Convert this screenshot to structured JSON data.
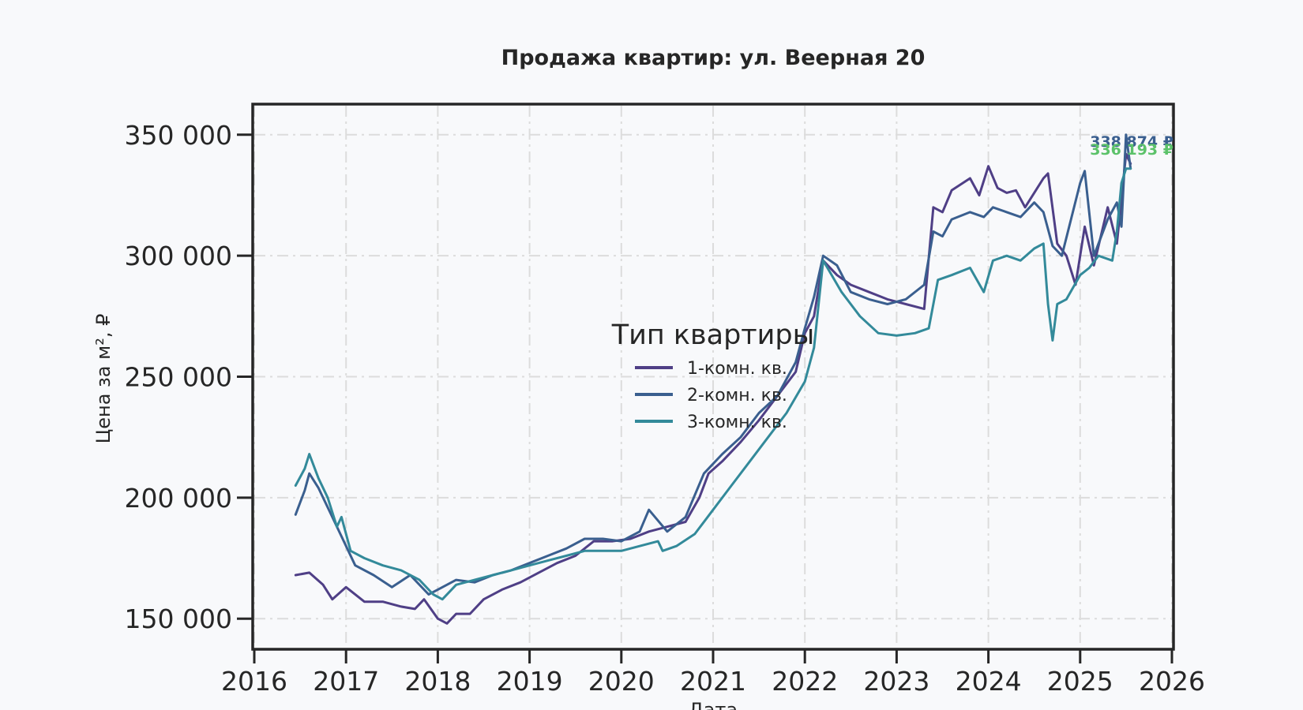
{
  "chart_data": {
    "type": "line",
    "title": "Продажа квартир: ул. Веерная 20",
    "xlabel": "Дата",
    "ylabel": "Цена за м², ₽",
    "xlim": [
      2016,
      2026
    ],
    "ylim": [
      138000,
      362000
    ],
    "x_ticks": [
      "2016",
      "2017",
      "2018",
      "2019",
      "2020",
      "2021",
      "2022",
      "2023",
      "2024",
      "2025",
      "2026"
    ],
    "y_ticks": [
      {
        "value": 150000,
        "label": "150 000"
      },
      {
        "value": 200000,
        "label": "200 000"
      },
      {
        "value": 250000,
        "label": "250 000"
      },
      {
        "value": 300000,
        "label": "300 000"
      },
      {
        "value": 350000,
        "label": "350 000"
      }
    ],
    "grid": true,
    "legend": {
      "title": "Тип квартиры",
      "placement": "center"
    },
    "series": [
      {
        "name": "1-комн. кв.",
        "color": "#4f3f86",
        "x": [
          2016.45,
          2016.6,
          2016.75,
          2016.85,
          2017.0,
          2017.2,
          2017.4,
          2017.6,
          2017.75,
          2017.85,
          2018.0,
          2018.1,
          2018.2,
          2018.35,
          2018.5,
          2018.7,
          2018.9,
          2019.1,
          2019.3,
          2019.5,
          2019.7,
          2019.9,
          2020.1,
          2020.3,
          2020.5,
          2020.7,
          2020.85,
          2020.95,
          2021.1,
          2021.3,
          2021.5,
          2021.7,
          2021.9,
          2022.0,
          2022.1,
          2022.2,
          2022.35,
          2022.5,
          2022.7,
          2022.9,
          2023.1,
          2023.3,
          2023.4,
          2023.5,
          2023.6,
          2023.8,
          2023.9,
          2024.0,
          2024.1,
          2024.2,
          2024.3,
          2024.4,
          2024.5,
          2024.6,
          2024.65,
          2024.75,
          2024.85,
          2024.95,
          2025.05,
          2025.15,
          2025.3,
          2025.4,
          2025.5,
          2025.55
        ],
        "y": [
          168000,
          169000,
          164000,
          158000,
          163000,
          157000,
          157000,
          155000,
          154000,
          158000,
          150000,
          148000,
          152000,
          152000,
          158000,
          162000,
          165000,
          169000,
          173000,
          176000,
          182000,
          182000,
          183000,
          186000,
          188000,
          190000,
          200000,
          210000,
          215000,
          223000,
          232000,
          242000,
          252000,
          268000,
          275000,
          298000,
          292000,
          288000,
          285000,
          282000,
          280000,
          278000,
          320000,
          318000,
          327000,
          332000,
          325000,
          337000,
          328000,
          326000,
          327000,
          320000,
          326000,
          332000,
          334000,
          305000,
          300000,
          288000,
          312000,
          296000,
          320000,
          305000,
          342000,
          338000
        ]
      },
      {
        "name": "2-комн. кв.",
        "color": "#3a5f8f",
        "x": [
          2016.45,
          2016.55,
          2016.6,
          2016.7,
          2016.85,
          2016.95,
          2017.1,
          2017.3,
          2017.5,
          2017.7,
          2017.9,
          2018.0,
          2018.2,
          2018.4,
          2018.6,
          2018.8,
          2019.0,
          2019.2,
          2019.4,
          2019.6,
          2019.8,
          2020.0,
          2020.2,
          2020.3,
          2020.5,
          2020.7,
          2020.9,
          2021.1,
          2021.3,
          2021.5,
          2021.7,
          2021.9,
          2022.0,
          2022.1,
          2022.2,
          2022.35,
          2022.5,
          2022.7,
          2022.9,
          2023.1,
          2023.3,
          2023.4,
          2023.5,
          2023.6,
          2023.8,
          2023.95,
          2024.05,
          2024.2,
          2024.35,
          2024.5,
          2024.6,
          2024.7,
          2024.8,
          2025.0,
          2025.05,
          2025.15,
          2025.3,
          2025.4,
          2025.45,
          2025.5,
          2025.55
        ],
        "y": [
          193000,
          203000,
          210000,
          204000,
          192000,
          184000,
          172000,
          168000,
          163000,
          168000,
          160000,
          162000,
          166000,
          165000,
          168000,
          170000,
          173000,
          176000,
          179000,
          183000,
          183000,
          182000,
          186000,
          195000,
          186000,
          192000,
          210000,
          218000,
          225000,
          235000,
          242000,
          256000,
          270000,
          283000,
          300000,
          296000,
          285000,
          282000,
          280000,
          282000,
          288000,
          310000,
          308000,
          315000,
          318000,
          316000,
          320000,
          318000,
          316000,
          322000,
          318000,
          304000,
          300000,
          330000,
          335000,
          300000,
          315000,
          322000,
          312000,
          350000,
          336000
        ]
      },
      {
        "name": "3-комн. кв.",
        "color": "#338a9a",
        "x": [
          2016.45,
          2016.55,
          2016.6,
          2016.7,
          2016.8,
          2016.9,
          2016.95,
          2017.05,
          2017.2,
          2017.4,
          2017.6,
          2017.8,
          2017.95,
          2018.05,
          2018.2,
          2018.4,
          2018.6,
          2018.8,
          2019.0,
          2019.2,
          2019.4,
          2019.6,
          2019.8,
          2020.0,
          2020.2,
          2020.4,
          2020.45,
          2020.6,
          2020.8,
          2021.0,
          2021.2,
          2021.4,
          2021.6,
          2021.8,
          2022.0,
          2022.1,
          2022.2,
          2022.4,
          2022.6,
          2022.8,
          2023.0,
          2023.2,
          2023.35,
          2023.45,
          2023.6,
          2023.8,
          2023.95,
          2024.05,
          2024.2,
          2024.35,
          2024.5,
          2024.6,
          2024.65,
          2024.7,
          2024.75,
          2024.85,
          2025.0,
          2025.1,
          2025.2,
          2025.35,
          2025.4,
          2025.45,
          2025.5,
          2025.55
        ],
        "y": [
          205000,
          212000,
          218000,
          208000,
          200000,
          188000,
          192000,
          178000,
          175000,
          172000,
          170000,
          166000,
          160000,
          158000,
          164000,
          166000,
          168000,
          170000,
          172000,
          174000,
          176000,
          178000,
          178000,
          178000,
          180000,
          182000,
          178000,
          180000,
          185000,
          195000,
          205000,
          215000,
          225000,
          235000,
          248000,
          262000,
          298000,
          285000,
          275000,
          268000,
          267000,
          268000,
          270000,
          290000,
          292000,
          295000,
          285000,
          298000,
          300000,
          298000,
          303000,
          305000,
          280000,
          265000,
          280000,
          282000,
          292000,
          295000,
          300000,
          298000,
          310000,
          330000,
          336000,
          336000
        ]
      }
    ],
    "last_value_labels": [
      {
        "text": "338 874 ₽",
        "color": "#3a5f8f"
      },
      {
        "text": "336 193 ₽",
        "color": "#5cc26a"
      }
    ]
  }
}
